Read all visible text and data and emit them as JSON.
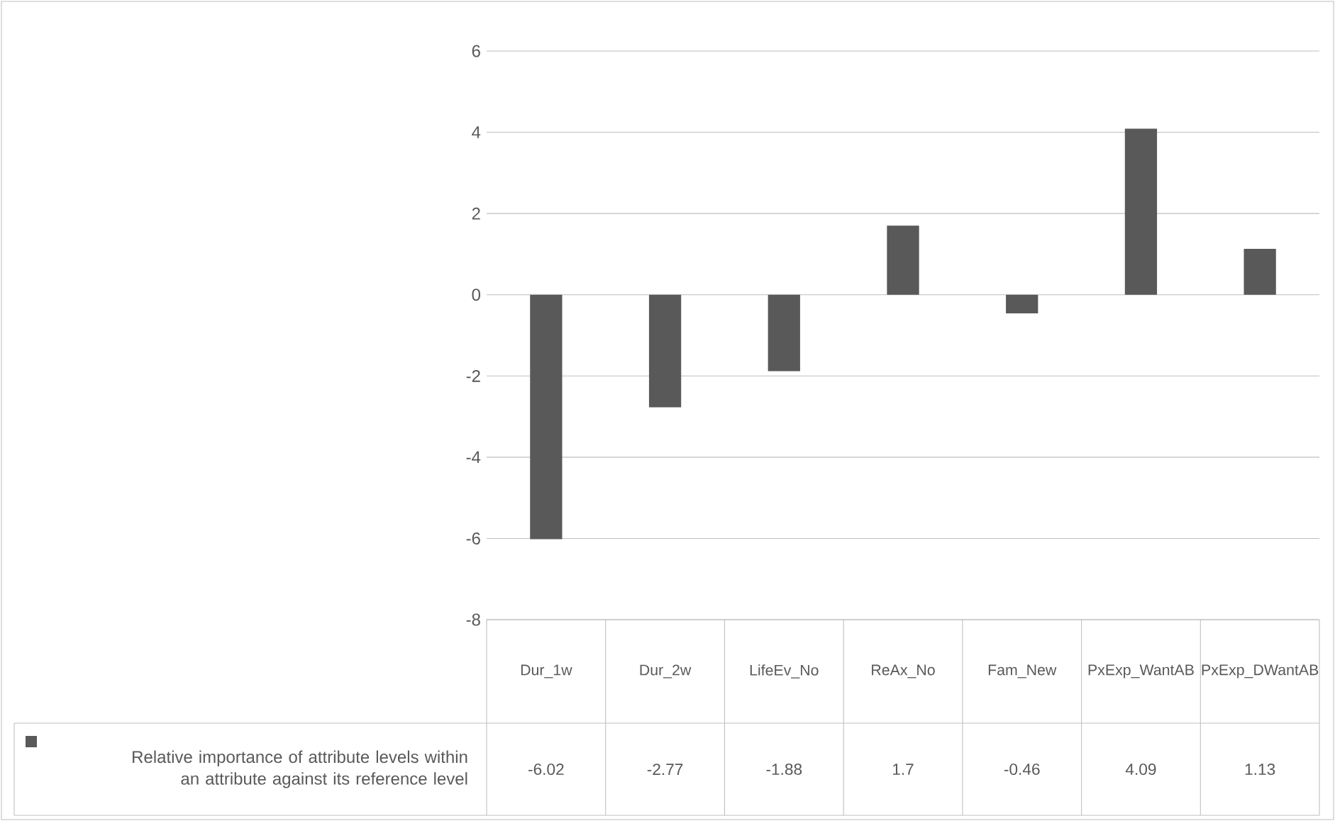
{
  "chart_data": {
    "type": "bar",
    "categories": [
      "Dur_1w",
      "Dur_2w",
      "LifeEv_No",
      "ReAx_No",
      "Fam_New",
      "PxExp_WantAB",
      "PxExp_DWantAB"
    ],
    "series": [
      {
        "name": "Relative importance of attribute levels within an attribute against its reference level",
        "color": "#595959",
        "values": [
          -6.02,
          -2.77,
          -1.88,
          1.7,
          -0.46,
          4.09,
          1.13
        ]
      }
    ],
    "value_labels": [
      "-6.02",
      "-2.77",
      "-1.88",
      "1.7",
      "-0.46",
      "4.09",
      "1.13"
    ],
    "ylim": [
      -8,
      6
    ],
    "yticks": [
      -8,
      -6,
      -4,
      -2,
      0,
      2,
      4,
      6
    ],
    "grid": "y",
    "legend": "bottom left"
  }
}
